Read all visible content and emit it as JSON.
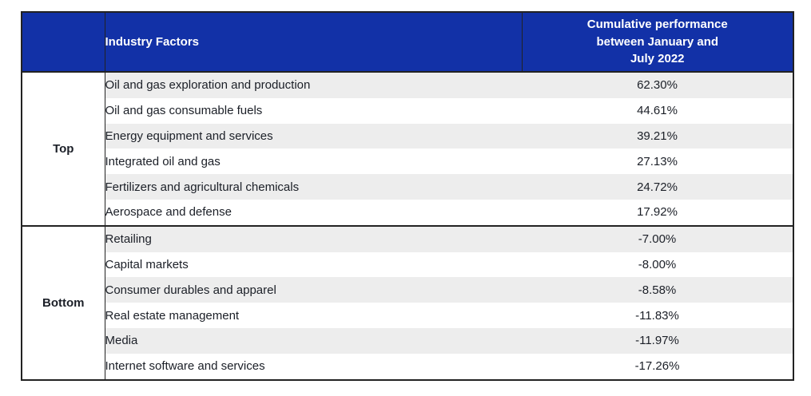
{
  "colors": {
    "header_bg": "#1231a7",
    "header_text": "#ffffff",
    "stripe_bg": "#ededed",
    "row_bg": "#ffffff",
    "border": "#222222",
    "body_text": "#1b1f27"
  },
  "header": {
    "group_col": "",
    "factor_col": "Industry Factors",
    "value_col_multiline": "Cumulative performance\nbetween January and\nJuly 2022"
  },
  "chart_data": {
    "type": "table",
    "columns": [
      "",
      "Industry Factors",
      "Cumulative performance between January and July 2022"
    ],
    "groups": [
      {
        "label": "Top",
        "rows": [
          {
            "factor": "Oil and gas exploration and production",
            "value": "62.30%",
            "value_num": 62.3
          },
          {
            "factor": "Oil and gas consumable fuels",
            "value": "44.61%",
            "value_num": 44.61
          },
          {
            "factor": "Energy equipment and services",
            "value": "39.21%",
            "value_num": 39.21
          },
          {
            "factor": "Integrated oil and gas",
            "value": "27.13%",
            "value_num": 27.13
          },
          {
            "factor": "Fertilizers and agricultural chemicals",
            "value": "24.72%",
            "value_num": 24.72
          },
          {
            "factor": "Aerospace and defense",
            "value": "17.92%",
            "value_num": 17.92
          }
        ]
      },
      {
        "label": "Bottom",
        "rows": [
          {
            "factor": "Retailing",
            "value": "-7.00%",
            "value_num": -7.0
          },
          {
            "factor": "Capital markets",
            "value": "-8.00%",
            "value_num": -8.0
          },
          {
            "factor": "Consumer durables and apparel",
            "value": "-8.58%",
            "value_num": -8.58
          },
          {
            "factor": "Real estate management",
            "value": "-11.83%",
            "value_num": -11.83
          },
          {
            "factor": "Media",
            "value": "-11.97%",
            "value_num": -11.97
          },
          {
            "factor": "Internet software and services",
            "value": "-17.26%",
            "value_num": -17.26
          }
        ]
      }
    ]
  }
}
